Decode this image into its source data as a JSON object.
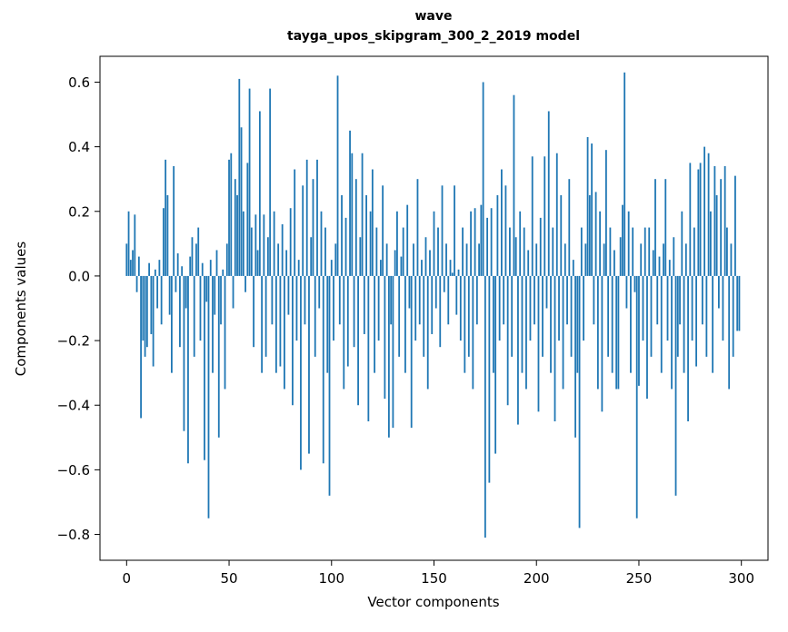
{
  "figure": {
    "background": "#ffffff"
  },
  "chart_data": {
    "type": "bar",
    "title_lines": [
      "wave",
      "tayga_upos_skipgram_300_2_2019 model"
    ],
    "xlabel": "Vector components",
    "ylabel": "Components values",
    "xlim": [
      -13,
      313
    ],
    "ylim": [
      -0.88,
      0.68
    ],
    "x_ticks": [
      0,
      50,
      100,
      150,
      200,
      250,
      300
    ],
    "y_ticks": [
      -0.8,
      -0.6,
      -0.4,
      -0.2,
      0.0,
      0.2,
      0.4,
      0.6
    ],
    "bar_color": "#1f77b4",
    "grid": false,
    "legend": "none",
    "x_is_index": true,
    "n_components": 300,
    "values": [
      0.1,
      0.2,
      0.05,
      0.08,
      0.19,
      -0.05,
      0.06,
      -0.44,
      -0.2,
      -0.25,
      -0.22,
      0.04,
      -0.18,
      -0.28,
      0.02,
      -0.1,
      0.05,
      -0.15,
      0.21,
      0.36,
      0.25,
      -0.12,
      -0.3,
      0.34,
      -0.05,
      0.07,
      -0.22,
      0.03,
      -0.48,
      -0.1,
      -0.58,
      0.06,
      0.12,
      -0.25,
      0.1,
      0.15,
      -0.2,
      0.04,
      -0.57,
      -0.08,
      -0.75,
      0.05,
      -0.3,
      -0.12,
      0.08,
      -0.5,
      -0.15,
      0.02,
      -0.35,
      0.1,
      0.36,
      0.38,
      -0.1,
      0.3,
      0.25,
      0.61,
      0.46,
      0.2,
      -0.05,
      0.35,
      0.58,
      0.15,
      -0.22,
      0.19,
      0.08,
      0.51,
      -0.3,
      0.19,
      -0.25,
      0.12,
      0.58,
      -0.15,
      0.2,
      -0.3,
      0.1,
      -0.28,
      0.16,
      -0.35,
      0.08,
      -0.12,
      0.21,
      -0.4,
      0.33,
      -0.2,
      0.05,
      -0.6,
      0.28,
      -0.15,
      0.36,
      -0.55,
      0.12,
      0.3,
      -0.25,
      0.36,
      -0.1,
      0.2,
      -0.58,
      0.15,
      -0.3,
      -0.68,
      0.05,
      -0.2,
      0.1,
      0.62,
      -0.15,
      0.25,
      -0.35,
      0.18,
      -0.28,
      0.45,
      0.38,
      -0.22,
      0.3,
      -0.4,
      0.12,
      0.38,
      -0.18,
      0.25,
      -0.45,
      0.2,
      0.33,
      -0.3,
      0.15,
      -0.2,
      0.05,
      0.28,
      -0.38,
      0.1,
      -0.5,
      -0.15,
      -0.47,
      0.08,
      0.2,
      -0.25,
      0.06,
      0.15,
      -0.3,
      0.22,
      -0.1,
      -0.47,
      0.1,
      -0.2,
      0.3,
      -0.15,
      0.05,
      -0.25,
      0.12,
      -0.35,
      0.08,
      -0.18,
      0.2,
      -0.1,
      0.15,
      -0.22,
      0.28,
      -0.05,
      0.1,
      -0.15,
      0.05,
      0.01,
      0.28,
      -0.12,
      0.02,
      -0.2,
      0.15,
      -0.3,
      0.1,
      -0.25,
      0.2,
      -0.35,
      0.21,
      -0.15,
      0.1,
      0.22,
      0.6,
      -0.81,
      0.18,
      -0.64,
      0.21,
      -0.3,
      -0.55,
      0.25,
      -0.2,
      0.33,
      -0.15,
      0.28,
      -0.4,
      0.15,
      -0.25,
      0.56,
      0.12,
      -0.46,
      0.2,
      -0.3,
      0.15,
      -0.35,
      0.08,
      -0.2,
      0.37,
      -0.15,
      0.1,
      -0.42,
      0.18,
      -0.25,
      0.37,
      -0.1,
      0.51,
      -0.3,
      0.15,
      -0.45,
      0.38,
      -0.2,
      0.25,
      -0.35,
      0.1,
      -0.15,
      0.3,
      -0.25,
      0.05,
      -0.5,
      -0.3,
      -0.78,
      0.15,
      -0.2,
      0.1,
      0.43,
      0.25,
      0.41,
      -0.15,
      0.26,
      -0.35,
      0.2,
      -0.42,
      0.1,
      0.39,
      -0.25,
      0.15,
      -0.3,
      0.08,
      -0.35,
      -0.35,
      0.12,
      0.22,
      0.63,
      -0.1,
      0.2,
      -0.3,
      0.15,
      -0.05,
      -0.75,
      -0.34,
      0.1,
      -0.2,
      0.15,
      -0.38,
      0.15,
      -0.25,
      0.08,
      0.3,
      -0.15,
      0.06,
      -0.3,
      0.1,
      0.3,
      -0.2,
      0.05,
      -0.35,
      0.12,
      -0.68,
      -0.25,
      -0.15,
      0.2,
      -0.3,
      0.1,
      -0.45,
      0.35,
      -0.2,
      0.15,
      -0.28,
      0.33,
      0.35,
      -0.15,
      0.4,
      -0.25,
      0.38,
      0.2,
      -0.3,
      0.34,
      0.25,
      -0.1,
      0.3,
      -0.2,
      0.34,
      0.15,
      -0.35,
      0.1,
      -0.25,
      0.31,
      -0.17,
      -0.17
    ]
  }
}
